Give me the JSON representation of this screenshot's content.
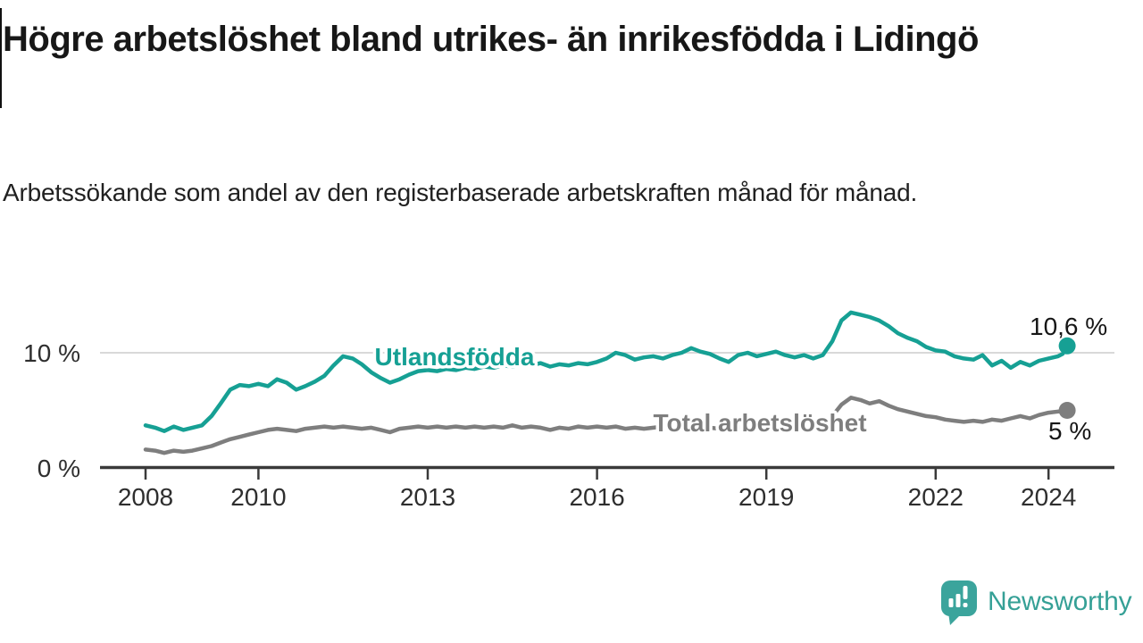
{
  "header": {
    "title": "Högre arbetslöshet bland utrikes- än inrikesfödda i Lidingö",
    "subtitle": "Arbetssökande som andel av den registerbaserade arbetskraften månad för månad."
  },
  "branding": {
    "name": "Newsworthy",
    "icon": "speech-bubble-with-bar-chart-and-exclamation",
    "logo_color": "#35a096"
  },
  "colors": {
    "accent_teal": "#16a094",
    "line_gray": "#7e7e7e",
    "gridline": "#d9d9d9",
    "axis": "#3a3a3a",
    "text": "#171717"
  },
  "chart_data": {
    "type": "line",
    "title": "Högre arbetslöshet bland utrikes- än inrikesfödda i Lidingö",
    "subtitle": "Arbetssökande som andel av den registerbaserade arbetskraften månad för månad.",
    "xlabel": "",
    "ylabel": "",
    "xlim": [
      2007.2,
      2025.4
    ],
    "ylim": [
      0,
      14.9
    ],
    "grid": "horizontal gridline at 10 % only",
    "legend": "inline labels on lines, value labels at line ends",
    "x_ticks": [
      2008,
      2010,
      2013,
      2016,
      2019,
      2022,
      2024
    ],
    "y_ticks": [
      {
        "value": 0,
        "label": "0 %"
      },
      {
        "value": 10,
        "label": "10 %"
      }
    ],
    "series": [
      {
        "name": "Utlandsfödda",
        "color": "#16a094",
        "end_value": 10.6,
        "end_label": "10,6 %",
        "points": [
          [
            2008.0,
            3.7
          ],
          [
            2008.17,
            3.5
          ],
          [
            2008.33,
            3.2
          ],
          [
            2008.5,
            3.6
          ],
          [
            2008.67,
            3.3
          ],
          [
            2008.83,
            3.5
          ],
          [
            2009.0,
            3.7
          ],
          [
            2009.17,
            4.5
          ],
          [
            2009.33,
            5.6
          ],
          [
            2009.5,
            6.8
          ],
          [
            2009.67,
            7.2
          ],
          [
            2009.83,
            7.1
          ],
          [
            2010.0,
            7.3
          ],
          [
            2010.17,
            7.1
          ],
          [
            2010.33,
            7.7
          ],
          [
            2010.5,
            7.4
          ],
          [
            2010.67,
            6.8
          ],
          [
            2010.83,
            7.1
          ],
          [
            2011.0,
            7.5
          ],
          [
            2011.17,
            8.0
          ],
          [
            2011.33,
            8.9
          ],
          [
            2011.5,
            9.7
          ],
          [
            2011.67,
            9.5
          ],
          [
            2011.83,
            9.0
          ],
          [
            2012.0,
            8.3
          ],
          [
            2012.17,
            7.8
          ],
          [
            2012.33,
            7.4
          ],
          [
            2012.5,
            7.7
          ],
          [
            2012.67,
            8.1
          ],
          [
            2012.83,
            8.4
          ],
          [
            2013.0,
            8.5
          ],
          [
            2013.17,
            8.4
          ],
          [
            2013.33,
            8.6
          ],
          [
            2013.5,
            8.5
          ],
          [
            2013.67,
            8.7
          ],
          [
            2013.83,
            8.6
          ],
          [
            2014.0,
            8.8
          ],
          [
            2014.17,
            8.7
          ],
          [
            2014.33,
            8.9
          ],
          [
            2014.5,
            8.8
          ],
          [
            2014.67,
            9.0
          ],
          [
            2014.83,
            8.9
          ],
          [
            2015.0,
            9.1
          ],
          [
            2015.17,
            8.8
          ],
          [
            2015.33,
            9.0
          ],
          [
            2015.5,
            8.9
          ],
          [
            2015.67,
            9.1
          ],
          [
            2015.83,
            9.0
          ],
          [
            2016.0,
            9.2
          ],
          [
            2016.17,
            9.5
          ],
          [
            2016.33,
            10.0
          ],
          [
            2016.5,
            9.8
          ],
          [
            2016.67,
            9.4
          ],
          [
            2016.83,
            9.6
          ],
          [
            2017.0,
            9.7
          ],
          [
            2017.17,
            9.5
          ],
          [
            2017.33,
            9.8
          ],
          [
            2017.5,
            10.0
          ],
          [
            2017.67,
            10.4
          ],
          [
            2017.83,
            10.1
          ],
          [
            2018.0,
            9.9
          ],
          [
            2018.17,
            9.5
          ],
          [
            2018.33,
            9.2
          ],
          [
            2018.5,
            9.8
          ],
          [
            2018.67,
            10.0
          ],
          [
            2018.83,
            9.7
          ],
          [
            2019.0,
            9.9
          ],
          [
            2019.17,
            10.1
          ],
          [
            2019.33,
            9.8
          ],
          [
            2019.5,
            9.6
          ],
          [
            2019.67,
            9.8
          ],
          [
            2019.83,
            9.5
          ],
          [
            2020.0,
            9.8
          ],
          [
            2020.17,
            11.0
          ],
          [
            2020.33,
            12.8
          ],
          [
            2020.5,
            13.5
          ],
          [
            2020.67,
            13.3
          ],
          [
            2020.83,
            13.1
          ],
          [
            2021.0,
            12.8
          ],
          [
            2021.17,
            12.3
          ],
          [
            2021.33,
            11.7
          ],
          [
            2021.5,
            11.3
          ],
          [
            2021.67,
            11.0
          ],
          [
            2021.83,
            10.5
          ],
          [
            2022.0,
            10.2
          ],
          [
            2022.17,
            10.1
          ],
          [
            2022.33,
            9.7
          ],
          [
            2022.5,
            9.5
          ],
          [
            2022.67,
            9.4
          ],
          [
            2022.83,
            9.8
          ],
          [
            2023.0,
            8.9
          ],
          [
            2023.17,
            9.3
          ],
          [
            2023.33,
            8.7
          ],
          [
            2023.5,
            9.2
          ],
          [
            2023.67,
            8.9
          ],
          [
            2023.83,
            9.3
          ],
          [
            2024.0,
            9.5
          ],
          [
            2024.17,
            9.7
          ],
          [
            2024.25,
            9.9
          ],
          [
            2024.33,
            10.6
          ]
        ]
      },
      {
        "name": "Total arbetslöshet",
        "color": "#7e7e7e",
        "end_value": 5,
        "end_label": "5 %",
        "points": [
          [
            2008.0,
            1.6
          ],
          [
            2008.17,
            1.5
          ],
          [
            2008.33,
            1.3
          ],
          [
            2008.5,
            1.5
          ],
          [
            2008.67,
            1.4
          ],
          [
            2008.83,
            1.5
          ],
          [
            2009.0,
            1.7
          ],
          [
            2009.17,
            1.9
          ],
          [
            2009.33,
            2.2
          ],
          [
            2009.5,
            2.5
          ],
          [
            2009.67,
            2.7
          ],
          [
            2009.83,
            2.9
          ],
          [
            2010.0,
            3.1
          ],
          [
            2010.17,
            3.3
          ],
          [
            2010.33,
            3.4
          ],
          [
            2010.5,
            3.3
          ],
          [
            2010.67,
            3.2
          ],
          [
            2010.83,
            3.4
          ],
          [
            2011.0,
            3.5
          ],
          [
            2011.17,
            3.6
          ],
          [
            2011.33,
            3.5
          ],
          [
            2011.5,
            3.6
          ],
          [
            2011.67,
            3.5
          ],
          [
            2011.83,
            3.4
          ],
          [
            2012.0,
            3.5
          ],
          [
            2012.17,
            3.3
          ],
          [
            2012.33,
            3.1
          ],
          [
            2012.5,
            3.4
          ],
          [
            2012.67,
            3.5
          ],
          [
            2012.83,
            3.6
          ],
          [
            2013.0,
            3.5
          ],
          [
            2013.17,
            3.6
          ],
          [
            2013.33,
            3.5
          ],
          [
            2013.5,
            3.6
          ],
          [
            2013.67,
            3.5
          ],
          [
            2013.83,
            3.6
          ],
          [
            2014.0,
            3.5
          ],
          [
            2014.17,
            3.6
          ],
          [
            2014.33,
            3.5
          ],
          [
            2014.5,
            3.7
          ],
          [
            2014.67,
            3.5
          ],
          [
            2014.83,
            3.6
          ],
          [
            2015.0,
            3.5
          ],
          [
            2015.17,
            3.3
          ],
          [
            2015.33,
            3.5
          ],
          [
            2015.5,
            3.4
          ],
          [
            2015.67,
            3.6
          ],
          [
            2015.83,
            3.5
          ],
          [
            2016.0,
            3.6
          ],
          [
            2016.17,
            3.5
          ],
          [
            2016.33,
            3.6
          ],
          [
            2016.5,
            3.4
          ],
          [
            2016.67,
            3.5
          ],
          [
            2016.83,
            3.4
          ],
          [
            2017.0,
            3.5
          ],
          [
            2017.17,
            3.6
          ],
          [
            2017.33,
            3.5
          ],
          [
            2017.5,
            3.6
          ],
          [
            2017.67,
            3.7
          ],
          [
            2017.83,
            3.6
          ],
          [
            2018.0,
            3.5
          ],
          [
            2018.17,
            3.4
          ],
          [
            2018.33,
            3.3
          ],
          [
            2018.5,
            3.5
          ],
          [
            2018.67,
            3.6
          ],
          [
            2018.83,
            3.5
          ],
          [
            2019.0,
            3.6
          ],
          [
            2019.17,
            3.7
          ],
          [
            2019.33,
            3.6
          ],
          [
            2019.5,
            3.5
          ],
          [
            2019.67,
            3.6
          ],
          [
            2019.83,
            3.5
          ],
          [
            2020.0,
            3.7
          ],
          [
            2020.17,
            4.5
          ],
          [
            2020.33,
            5.5
          ],
          [
            2020.5,
            6.1
          ],
          [
            2020.67,
            5.9
          ],
          [
            2020.83,
            5.6
          ],
          [
            2021.0,
            5.8
          ],
          [
            2021.17,
            5.4
          ],
          [
            2021.33,
            5.1
          ],
          [
            2021.5,
            4.9
          ],
          [
            2021.67,
            4.7
          ],
          [
            2021.83,
            4.5
          ],
          [
            2022.0,
            4.4
          ],
          [
            2022.17,
            4.2
          ],
          [
            2022.33,
            4.1
          ],
          [
            2022.5,
            4.0
          ],
          [
            2022.67,
            4.1
          ],
          [
            2022.83,
            4.0
          ],
          [
            2023.0,
            4.2
          ],
          [
            2023.17,
            4.1
          ],
          [
            2023.33,
            4.3
          ],
          [
            2023.5,
            4.5
          ],
          [
            2023.67,
            4.3
          ],
          [
            2023.83,
            4.6
          ],
          [
            2024.0,
            4.8
          ],
          [
            2024.17,
            4.9
          ],
          [
            2024.25,
            4.9
          ],
          [
            2024.33,
            5.0
          ]
        ]
      }
    ]
  }
}
